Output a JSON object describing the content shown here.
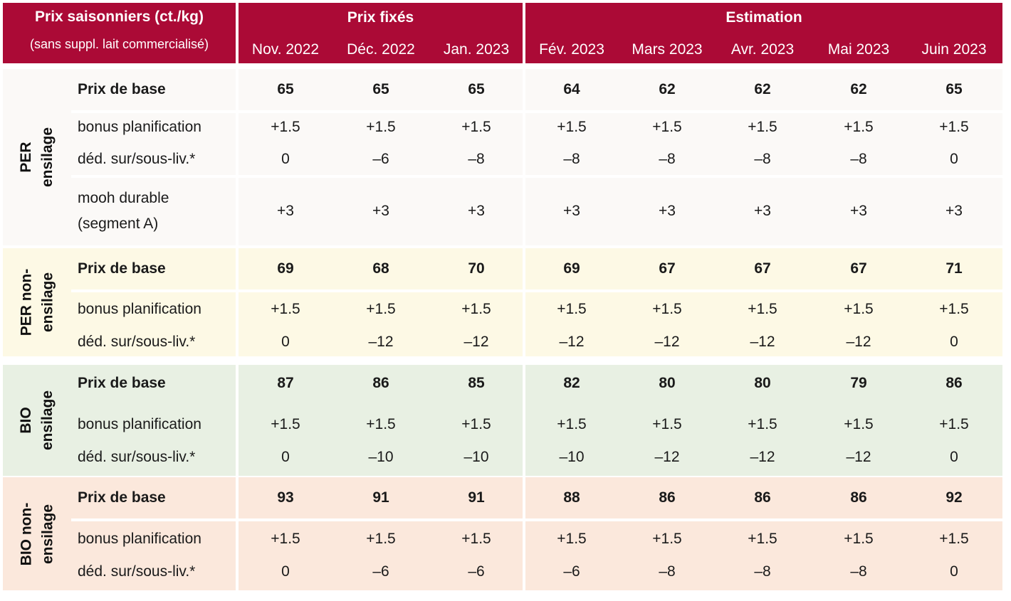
{
  "header": {
    "title": "Prix saisonniers (ct./kg)",
    "subtitle": "(sans suppl. lait commercialisé)",
    "group_fixed": "Prix fixés",
    "group_est": "Estimation",
    "months": [
      "Nov. 2022",
      "Déc. 2022",
      "Jan. 2023",
      "Fév. 2023",
      "Mars 2023",
      "Avr. 2023",
      "Mai 2023",
      "Juin 2023"
    ]
  },
  "blocks": [
    {
      "line1": "PER",
      "line2": "ensilage",
      "rows": [
        {
          "label": "Prix de base",
          "values": [
            "65",
            "65",
            "65",
            "64",
            "62",
            "62",
            "62",
            "65"
          ]
        },
        {
          "label": "bonus planification",
          "values": [
            "+1.5",
            "+1.5",
            "+1.5",
            "+1.5",
            "+1.5",
            "+1.5",
            "+1.5",
            "+1.5"
          ]
        },
        {
          "label": "déd. sur/sous-liv.*",
          "values": [
            "0",
            "–6",
            "–8",
            "–8",
            "–8",
            "–8",
            "–8",
            "0"
          ]
        },
        {
          "label": "mooh durable",
          "label2": "(segment A)",
          "values": [
            "+3",
            "+3",
            "+3",
            "+3",
            "+3",
            "+3",
            "+3",
            "+3"
          ]
        }
      ]
    },
    {
      "line1": "PER non-",
      "line2": "ensilage",
      "rows": [
        {
          "label": "Prix de base",
          "values": [
            "69",
            "68",
            "70",
            "69",
            "67",
            "67",
            "67",
            "71"
          ]
        },
        {
          "label": "bonus planification",
          "values": [
            "+1.5",
            "+1.5",
            "+1.5",
            "+1.5",
            "+1.5",
            "+1.5",
            "+1.5",
            "+1.5"
          ]
        },
        {
          "label": "déd. sur/sous-liv.*",
          "values": [
            "0",
            "–12",
            "–12",
            "–12",
            "–12",
            "–12",
            "–12",
            "0"
          ]
        }
      ]
    },
    {
      "line1": "BIO",
      "line2": "ensilage",
      "rows": [
        {
          "label": "Prix de base",
          "values": [
            "87",
            "86",
            "85",
            "82",
            "80",
            "80",
            "79",
            "86"
          ]
        },
        {
          "label": "bonus planification",
          "values": [
            "+1.5",
            "+1.5",
            "+1.5",
            "+1.5",
            "+1.5",
            "+1.5",
            "+1.5",
            "+1.5"
          ]
        },
        {
          "label": "déd. sur/sous-liv.*",
          "values": [
            "0",
            "–10",
            "–10",
            "–10",
            "–12",
            "–12",
            "–12",
            "0"
          ]
        }
      ]
    },
    {
      "line1": "BIO non-",
      "line2": "ensilage",
      "rows": [
        {
          "label": "Prix de base",
          "values": [
            "93",
            "91",
            "91",
            "88",
            "86",
            "86",
            "86",
            "92"
          ]
        },
        {
          "label": "bonus planification",
          "values": [
            "+1.5",
            "+1.5",
            "+1.5",
            "+1.5",
            "+1.5",
            "+1.5",
            "+1.5",
            "+1.5"
          ]
        },
        {
          "label": "déd. sur/sous-liv.*",
          "values": [
            "0",
            "–6",
            "–6",
            "–6",
            "–8",
            "–8",
            "–8",
            "0"
          ]
        }
      ]
    }
  ]
}
